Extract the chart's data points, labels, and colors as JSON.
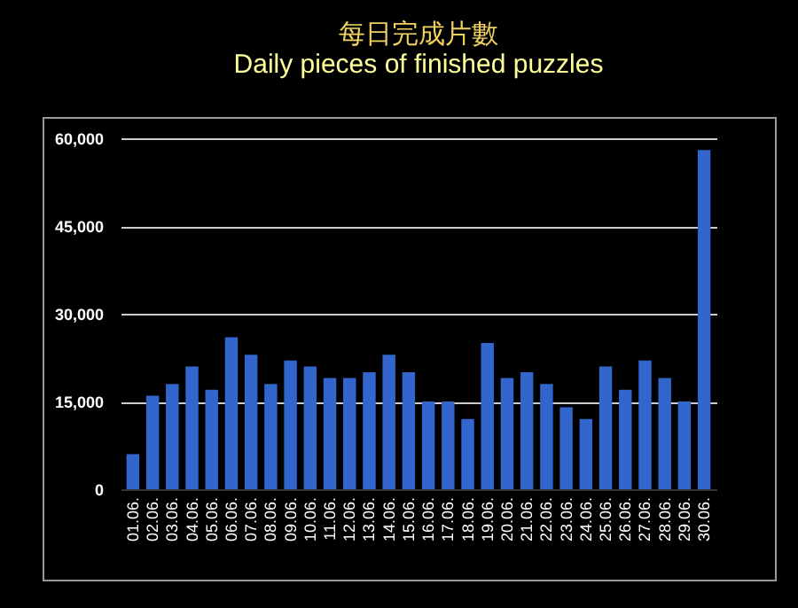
{
  "chart_data": {
    "type": "bar",
    "title": "每日完成片數",
    "subtitle": "Daily pieces of finished puzzles",
    "categories": [
      "01.06.",
      "02.06.",
      "03.06.",
      "04.06.",
      "05.06.",
      "06.06.",
      "07.06.",
      "08.06.",
      "09.06.",
      "10.06.",
      "11.06.",
      "12.06.",
      "13.06.",
      "14.06.",
      "15.06.",
      "16.06.",
      "17.06.",
      "18.06.",
      "19.06.",
      "20.06.",
      "21.06.",
      "22.06.",
      "23.06.",
      "24.06.",
      "25.06.",
      "26.06.",
      "27.06.",
      "28.06.",
      "29.06.",
      "30.06."
    ],
    "values": [
      6000,
      16000,
      18000,
      21000,
      17000,
      26000,
      23000,
      18000,
      22000,
      21000,
      19000,
      19000,
      20000,
      23000,
      20000,
      15000,
      15000,
      12000,
      25000,
      19000,
      20000,
      18000,
      14000,
      12000,
      21000,
      17000,
      22000,
      19000,
      15000,
      58000
    ],
    "color": "#3366cc",
    "ylim": [
      0,
      60000
    ],
    "yticks": [
      0,
      {
        "value": 15000,
        "label": "15,000"
      },
      {
        "value": 30000,
        "label": "30,000"
      },
      {
        "value": 45000,
        "label": "45,000"
      },
      {
        "value": 60000,
        "label": "60,000"
      }
    ],
    "grid": "y"
  }
}
